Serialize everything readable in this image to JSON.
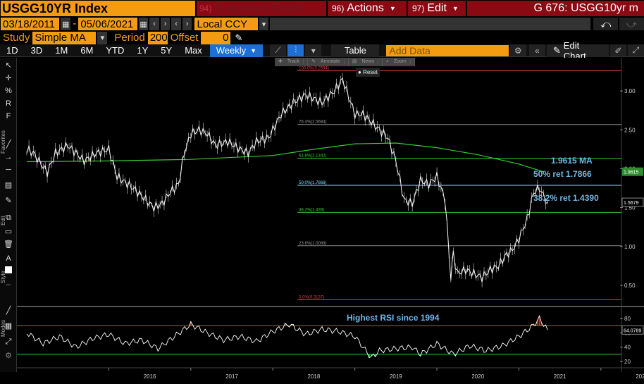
{
  "header": {
    "ticker": "USGG10YR Index",
    "suggested_num": "94)",
    "suggested_label": "Suggested Charts",
    "actions_num": "96)",
    "actions_label": "Actions",
    "edit_num": "97)",
    "edit_label": "Edit",
    "page_title": "G 676: USGG10yr m"
  },
  "controls": {
    "start_date": "03/18/2011",
    "end_date": "05/06/2021",
    "currency": "Local CCY",
    "study_label": "Study",
    "study_value": "Simple MA",
    "period_label": "Period",
    "period_value": "200",
    "offset_label": "Offset",
    "offset_value": "0"
  },
  "toolbar": {
    "ranges": [
      "1D",
      "3D",
      "1M",
      "6M",
      "YTD",
      "1Y",
      "5Y",
      "Max"
    ],
    "frequency": "Weekly",
    "table_label": "Table",
    "add_data_placeholder": "Add Data",
    "edit_chart_label": "Edit Chart"
  },
  "sidebar_labels": {
    "favorites": "Favorites",
    "edit": "Edit",
    "style": "Style",
    "modes": "Modes"
  },
  "mini_toolbar": {
    "track": "Track",
    "annotate": "Annotate",
    "news": "News",
    "zoom": "Zoom",
    "reset": "Reset"
  },
  "colors": {
    "price": "#ffffff",
    "ma": "#33cc33",
    "fib_red": "#e04040",
    "fib_green": "#33cc33",
    "fib_gray": "#888888",
    "fib_cyan": "#7fe0ff",
    "annotation": "#6fb8e8",
    "rsi": "#ffffff",
    "rsi_over": "#e04040",
    "rsi_under": "#33cc33",
    "ma_badge": "#2e8b2e"
  },
  "chart_data": [
    {
      "type": "line",
      "title": "USGG10YR Index",
      "x_tick_labels": [
        "2016",
        "2017",
        "2018",
        "2019",
        "2020",
        "2021",
        "2022"
      ],
      "y_tick_labels": [
        "3.00",
        "2.50",
        "2.00",
        "1.50",
        "1.00",
        "0.50"
      ],
      "ylim": [
        0.3,
        3.3
      ],
      "series": [
        {
          "role": "price",
          "x": [
            2015.0,
            2015.08,
            2015.15,
            2015.25,
            2015.35,
            2015.5,
            2015.6,
            2015.7,
            2015.85,
            2016.0,
            2016.1,
            2016.3,
            2016.45,
            2016.55,
            2016.65,
            2016.75,
            2016.85,
            2016.92,
            2017.0,
            2017.1,
            2017.2,
            2017.3,
            2017.45,
            2017.6,
            2017.7,
            2017.8,
            2017.95,
            2018.1,
            2018.25,
            2018.4,
            2018.5,
            2018.6,
            2018.75,
            2018.85,
            2018.95,
            2019.0,
            2019.1,
            2019.25,
            2019.4,
            2019.5,
            2019.6,
            2019.7,
            2019.8,
            2019.9,
            2020.0,
            2020.1,
            2020.17,
            2020.2,
            2020.25,
            2020.35,
            2020.45,
            2020.55,
            2020.65,
            2020.75,
            2020.85,
            2020.92,
            2021.0,
            2021.1,
            2021.18,
            2021.25,
            2021.3,
            2021.35
          ],
          "values": [
            2.25,
            2.2,
            2.1,
            1.95,
            2.2,
            2.3,
            2.2,
            2.1,
            2.2,
            2.25,
            1.9,
            1.75,
            1.6,
            1.5,
            1.55,
            1.7,
            1.8,
            2.2,
            2.45,
            2.5,
            2.45,
            2.3,
            2.35,
            2.25,
            2.2,
            2.35,
            2.4,
            2.7,
            2.85,
            2.95,
            2.9,
            2.85,
            3.0,
            3.15,
            2.85,
            2.7,
            2.7,
            2.55,
            2.4,
            2.1,
            1.6,
            1.55,
            1.85,
            1.8,
            1.9,
            1.6,
            0.6,
            0.9,
            0.65,
            0.7,
            0.65,
            0.6,
            0.7,
            0.75,
            0.9,
            0.95,
            1.1,
            1.35,
            1.7,
            1.75,
            1.65,
            1.57
          ]
        },
        {
          "role": "moving_average",
          "name": "1.9615 MA",
          "x": [
            2015.0,
            2016.0,
            2017.0,
            2018.0,
            2018.5,
            2019.0,
            2019.5,
            2020.0,
            2020.5,
            2021.0,
            2021.3
          ],
          "values": [
            2.09,
            2.1,
            2.12,
            2.17,
            2.25,
            2.32,
            2.33,
            2.27,
            2.18,
            2.06,
            1.96
          ]
        }
      ],
      "fib_levels": [
        {
          "label": "100.0%(3.2594)",
          "value": 3.2594,
          "color": "red"
        },
        {
          "label": "76.4%(2.5684)",
          "value": 2.5684,
          "color": "gray"
        },
        {
          "label": "61.8%(2.1342)",
          "value": 2.1342,
          "color": "green"
        },
        {
          "label": "50.0%(1.7866)",
          "value": 1.7866,
          "color": "cyan"
        },
        {
          "label": "38.2%(1.439)",
          "value": 1.439,
          "color": "green"
        },
        {
          "label": "23.6%(1.0089)",
          "value": 1.0089,
          "color": "gray"
        },
        {
          "label": "0.0%(0.3137)",
          "value": 0.3137,
          "color": "red"
        }
      ],
      "annotations": [
        "1.9615 MA",
        "50% ret 1.7866",
        "38.2% ret 1.4390"
      ],
      "badges": [
        {
          "label": "1.9615",
          "value": 1.9615,
          "color": "green"
        },
        {
          "label": "1.5679",
          "value": 1.5679,
          "color": "black"
        }
      ]
    },
    {
      "type": "line",
      "title": "RSI",
      "y_tick_labels": [
        "80",
        "60",
        "40",
        "20"
      ],
      "ylim": [
        15,
        90
      ],
      "annotation": "Highest RSI since 1994",
      "bands": [
        70,
        30
      ],
      "badge": "64.0789",
      "series": [
        {
          "role": "rsi",
          "x": [
            2015.0,
            2015.2,
            2015.4,
            2015.6,
            2015.8,
            2016.0,
            2016.2,
            2016.4,
            2016.6,
            2016.8,
            2017.0,
            2017.2,
            2017.4,
            2017.6,
            2017.8,
            2018.0,
            2018.2,
            2018.4,
            2018.6,
            2018.8,
            2019.0,
            2019.1,
            2019.2,
            2019.3,
            2019.5,
            2019.7,
            2019.8,
            2020.0,
            2020.2,
            2020.4,
            2020.6,
            2020.8,
            2021.0,
            2021.15,
            2021.25,
            2021.35
          ],
          "values": [
            60,
            45,
            55,
            40,
            52,
            58,
            45,
            50,
            38,
            55,
            72,
            60,
            50,
            55,
            48,
            62,
            72,
            58,
            65,
            62,
            55,
            40,
            25,
            35,
            38,
            40,
            30,
            45,
            30,
            42,
            35,
            42,
            55,
            68,
            80,
            64
          ]
        }
      ]
    }
  ]
}
